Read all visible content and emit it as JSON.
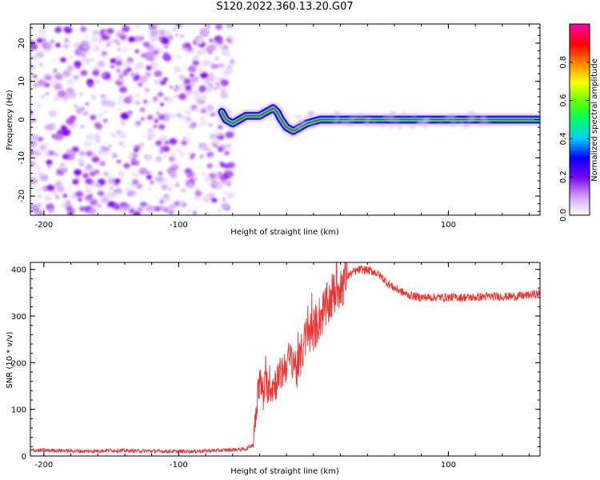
{
  "title": "S120.2022.360.13.20.G07",
  "chart_data": [
    {
      "type": "heatmap",
      "name": "spectrogram",
      "xlabel": "Height of straight line (km)",
      "ylabel": "Frequency (Hz)",
      "xlim": [
        -210,
        168
      ],
      "ylim": [
        -25,
        25
      ],
      "xticks": [
        -200,
        -100,
        100
      ],
      "yticks": [
        20,
        10,
        0,
        -10,
        -20
      ],
      "noise_region_x": [
        -210,
        -60
      ],
      "ridge": {
        "x": [
          -68,
          -65,
          -60,
          -55,
          -50,
          -45,
          -40,
          -35,
          -30,
          -27,
          -24,
          -20,
          -15,
          -10,
          -5,
          0,
          5,
          10,
          20,
          40,
          60,
          80,
          100,
          130,
          168
        ],
        "y": [
          2,
          0,
          -1,
          0,
          1,
          1,
          1,
          2,
          3,
          2,
          0,
          -2,
          -3,
          -2,
          -1,
          -0.5,
          0,
          0,
          0,
          0,
          0,
          0,
          0,
          0,
          0
        ]
      },
      "colorbar": {
        "label": "Normalized spectral amplitude",
        "ticks": [
          0.0,
          0.2,
          0.4,
          0.6,
          0.8
        ],
        "colors": [
          "#ffffff",
          "#cc99ff",
          "#7700ff",
          "#0000ff",
          "#00ccff",
          "#00ff66",
          "#66ff00",
          "#ffff00",
          "#ff8800",
          "#ff0000",
          "#ff0099"
        ]
      }
    },
    {
      "type": "line",
      "name": "snr",
      "xlabel": "Height of straight line (km)",
      "ylabel": "SNR (10 * v/v)",
      "xlim": [
        -210,
        168
      ],
      "ylim": [
        0,
        415
      ],
      "xticks": [
        -200,
        -100,
        100
      ],
      "yticks": [
        0,
        100,
        200,
        300,
        400
      ],
      "color": "#ee3333",
      "series": [
        {
          "name": "SNR",
          "x": [
            -210,
            -190,
            -170,
            -150,
            -130,
            -110,
            -90,
            -70,
            -50,
            -45,
            -42,
            -40,
            -38,
            -35,
            -30,
            -25,
            -20,
            -15,
            -12,
            -8,
            -5,
            0,
            5,
            10,
            15,
            20,
            25,
            30,
            35,
            40,
            45,
            50,
            55,
            60,
            70,
            80,
            90,
            100,
            110,
            120,
            130,
            140,
            150,
            160,
            168
          ],
          "y": [
            12,
            12,
            10,
            12,
            11,
            10,
            10,
            12,
            15,
            25,
            120,
            160,
            140,
            150,
            150,
            170,
            200,
            210,
            180,
            230,
            260,
            270,
            300,
            320,
            350,
            370,
            385,
            395,
            400,
            398,
            395,
            385,
            370,
            360,
            345,
            340,
            340,
            340,
            340,
            340,
            342,
            342,
            342,
            345,
            348
          ]
        }
      ]
    }
  ]
}
